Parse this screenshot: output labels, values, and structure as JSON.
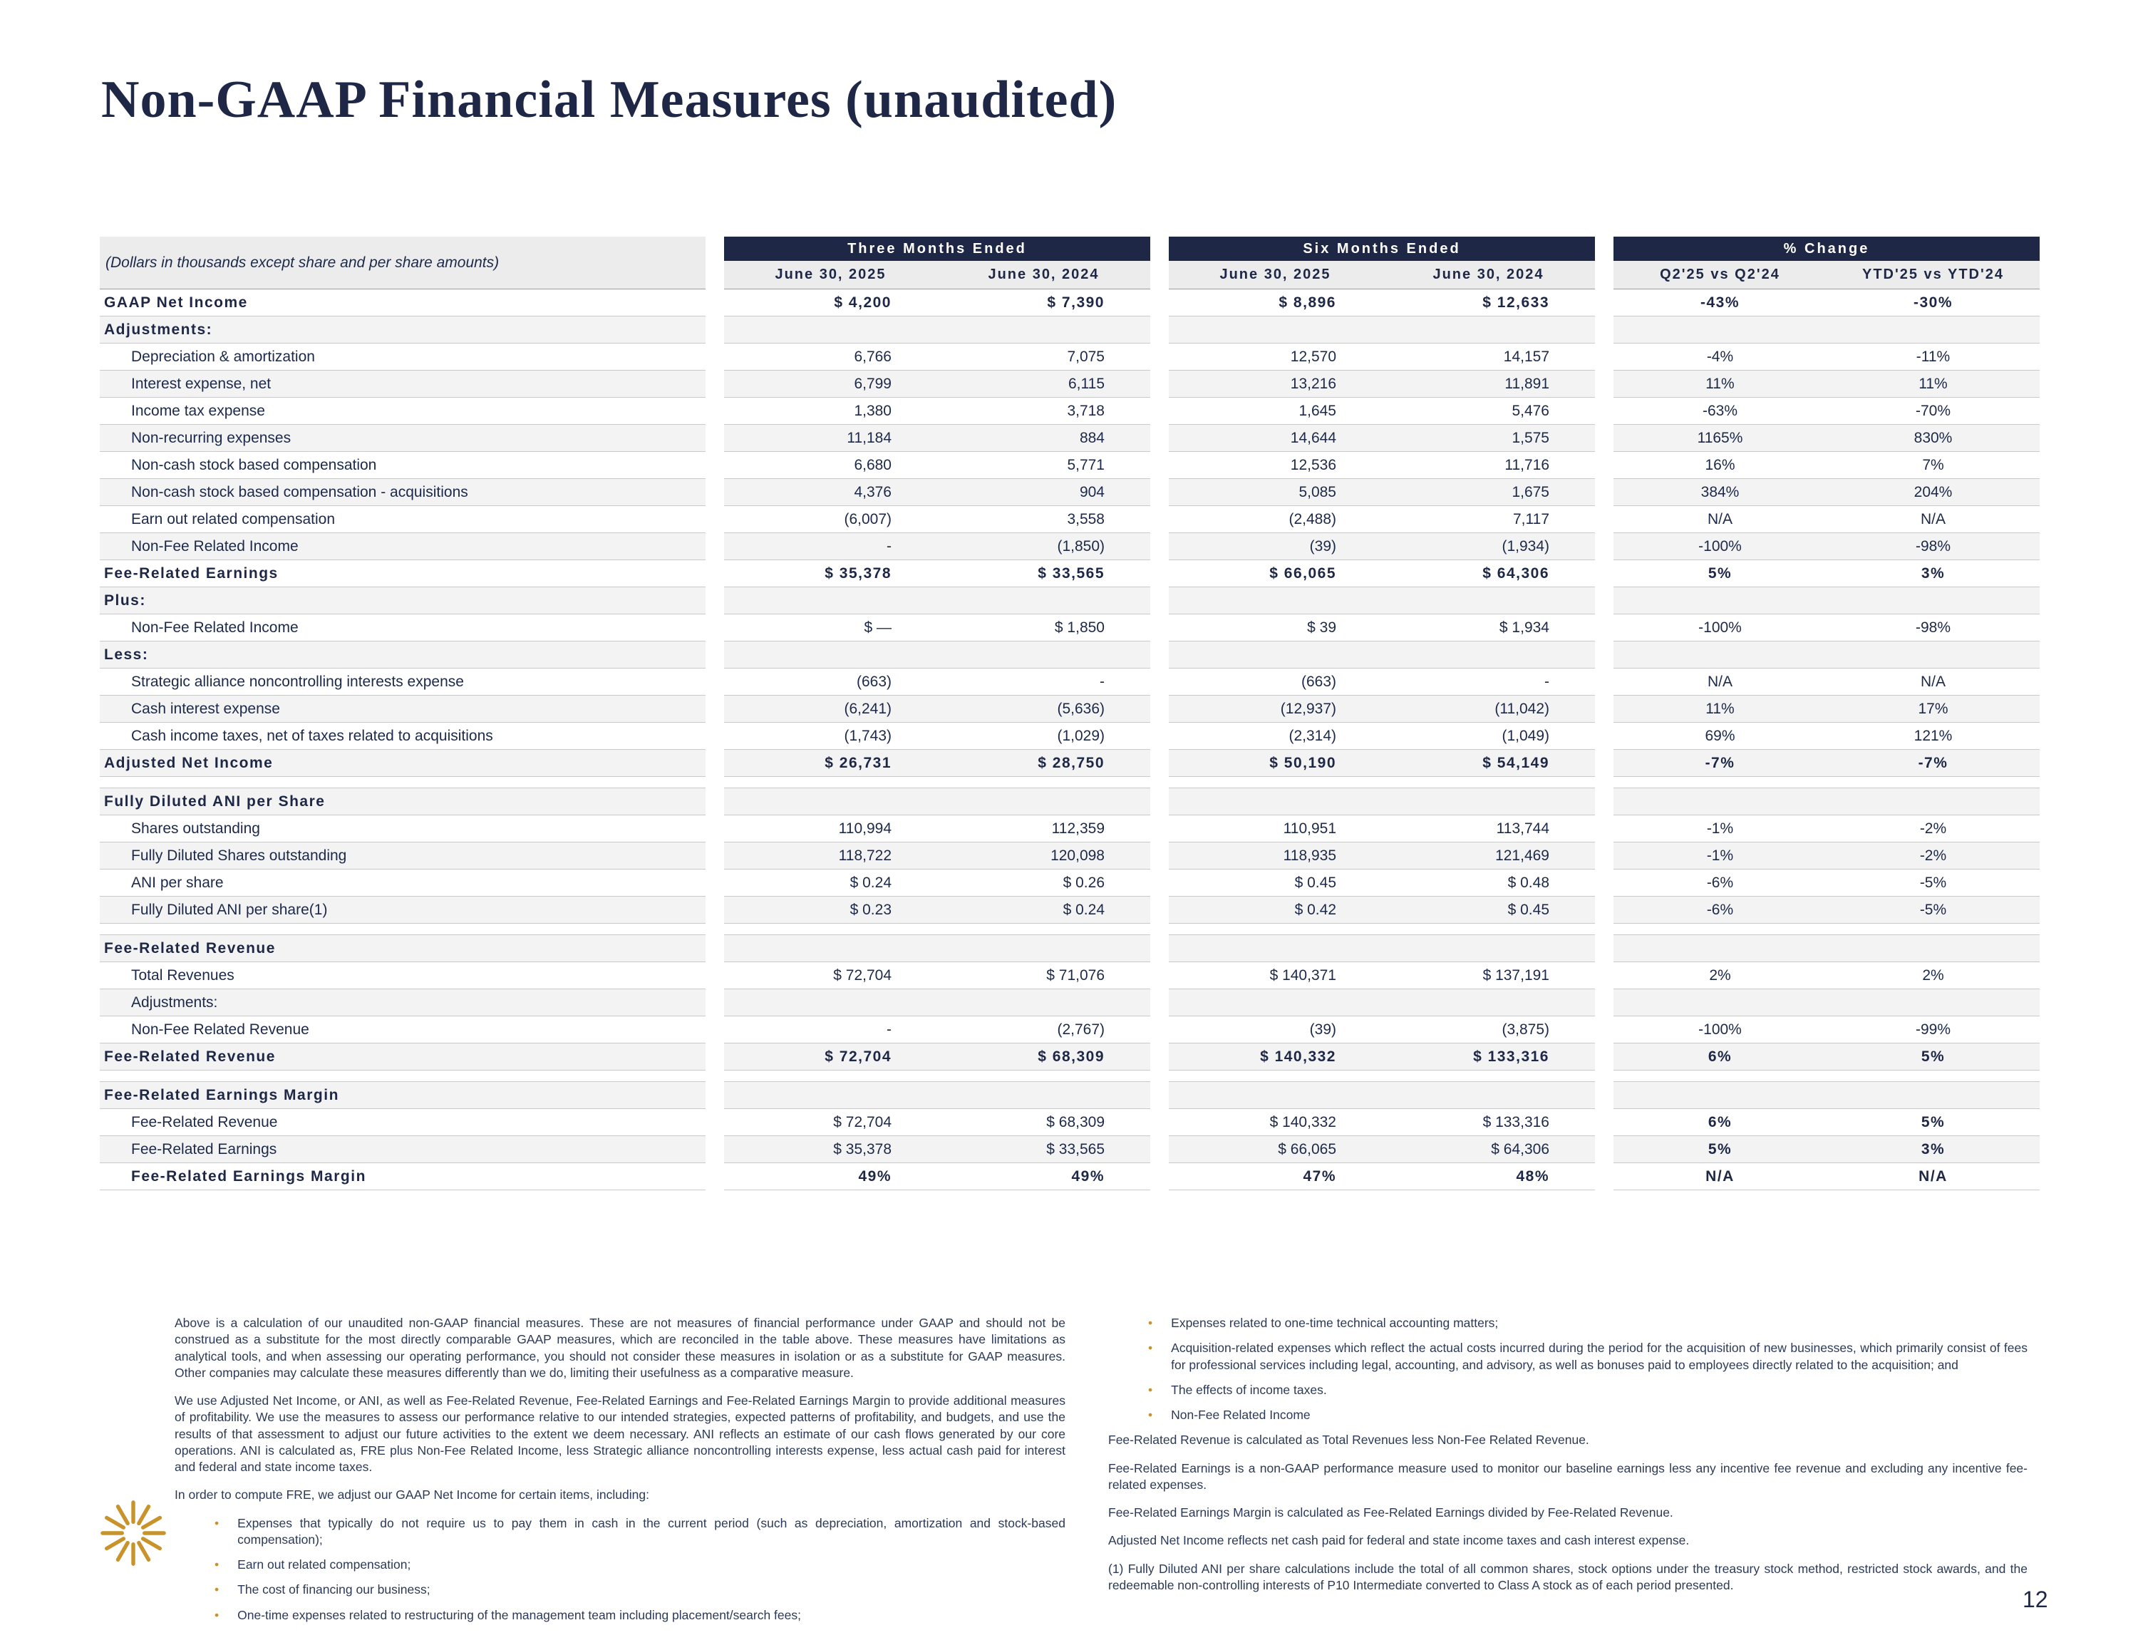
{
  "page": {
    "title": "Non-GAAP Financial Measures (unaudited)",
    "page_number": "12"
  },
  "colors": {
    "navy": "#1e2746",
    "gold": "#c8932b",
    "shade": "#f3f3f3",
    "headbg": "#ececec",
    "line": "#c9c9c9"
  },
  "icons": {
    "logo": "starburst-icon",
    "bullet": "•"
  },
  "table": {
    "caption": "(Dollars in thousands except share and per share amounts)",
    "col_groups": [
      {
        "label": "Three Months Ended",
        "cols": [
          "June 30, 2025",
          "June 30, 2024"
        ]
      },
      {
        "label": "Six Months Ended",
        "cols": [
          "June 30, 2025",
          "June 30, 2024"
        ]
      },
      {
        "label": "% Change",
        "cols": [
          "Q2'25 vs Q2'24",
          "YTD'25 vs YTD'24"
        ]
      }
    ],
    "rows": [
      {
        "type": "data",
        "label": "GAAP Net Income",
        "bold": true,
        "indent": false,
        "shaded": false,
        "values": [
          "$ 4,200",
          "$ 7,390",
          "$ 8,896",
          "$ 12,633",
          "-43%",
          "-30%"
        ]
      },
      {
        "type": "data",
        "label": "Adjustments:",
        "bold": true,
        "indent": false,
        "shaded": true,
        "values": [
          "",
          "",
          "",
          "",
          "",
          ""
        ]
      },
      {
        "type": "data",
        "label": "Depreciation & amortization",
        "bold": false,
        "indent": true,
        "shaded": false,
        "values": [
          "6,766",
          "7,075",
          "12,570",
          "14,157",
          "-4%",
          "-11%"
        ]
      },
      {
        "type": "data",
        "label": "Interest expense, net",
        "bold": false,
        "indent": true,
        "shaded": true,
        "values": [
          "6,799",
          "6,115",
          "13,216",
          "11,891",
          "11%",
          "11%"
        ]
      },
      {
        "type": "data",
        "label": "Income tax expense",
        "bold": false,
        "indent": true,
        "shaded": false,
        "values": [
          "1,380",
          "3,718",
          "1,645",
          "5,476",
          "-63%",
          "-70%"
        ]
      },
      {
        "type": "data",
        "label": "Non-recurring expenses",
        "bold": false,
        "indent": true,
        "shaded": true,
        "values": [
          "11,184",
          "884",
          "14,644",
          "1,575",
          "1165%",
          "830%"
        ]
      },
      {
        "type": "data",
        "label": "Non-cash stock based compensation",
        "bold": false,
        "indent": true,
        "shaded": false,
        "values": [
          "6,680",
          "5,771",
          "12,536",
          "11,716",
          "16%",
          "7%"
        ]
      },
      {
        "type": "data",
        "label": "Non-cash stock based compensation - acquisitions",
        "bold": false,
        "indent": true,
        "shaded": true,
        "values": [
          "4,376",
          "904",
          "5,085",
          "1,675",
          "384%",
          "204%"
        ]
      },
      {
        "type": "data",
        "label": "Earn out related compensation",
        "bold": false,
        "indent": true,
        "shaded": false,
        "values": [
          "(6,007)",
          "3,558",
          "(2,488)",
          "7,117",
          "N/A",
          "N/A"
        ]
      },
      {
        "type": "data",
        "label": "Non-Fee Related Income",
        "bold": false,
        "indent": true,
        "shaded": true,
        "values": [
          "-",
          "(1,850)",
          "(39)",
          "(1,934)",
          "-100%",
          "-98%"
        ]
      },
      {
        "type": "data",
        "label": "Fee-Related Earnings",
        "bold": true,
        "indent": false,
        "shaded": false,
        "values": [
          "$ 35,378",
          "$ 33,565",
          "$ 66,065",
          "$ 64,306",
          "5%",
          "3%"
        ]
      },
      {
        "type": "data",
        "label": "Plus:",
        "bold": true,
        "indent": false,
        "shaded": true,
        "values": [
          "",
          "",
          "",
          "",
          "",
          ""
        ]
      },
      {
        "type": "data",
        "label": "Non-Fee Related Income",
        "bold": false,
        "indent": true,
        "shaded": false,
        "values": [
          "$ —",
          "$ 1,850",
          "$ 39",
          "$ 1,934",
          "-100%",
          "-98%"
        ]
      },
      {
        "type": "data",
        "label": "Less:",
        "bold": true,
        "indent": false,
        "shaded": true,
        "values": [
          "",
          "",
          "",
          "",
          "",
          ""
        ]
      },
      {
        "type": "data",
        "label": "Strategic alliance noncontrolling interests expense",
        "bold": false,
        "indent": true,
        "shaded": false,
        "values": [
          "(663)",
          "-",
          "(663)",
          "-",
          "N/A",
          "N/A"
        ]
      },
      {
        "type": "data",
        "label": "Cash interest expense",
        "bold": false,
        "indent": true,
        "shaded": true,
        "values": [
          "(6,241)",
          "(5,636)",
          "(12,937)",
          "(11,042)",
          "11%",
          "17%"
        ]
      },
      {
        "type": "data",
        "label": "Cash income taxes, net of taxes related to acquisitions",
        "bold": false,
        "indent": true,
        "shaded": false,
        "values": [
          "(1,743)",
          "(1,029)",
          "(2,314)",
          "(1,049)",
          "69%",
          "121%"
        ]
      },
      {
        "type": "data",
        "label": "Adjusted Net Income",
        "bold": true,
        "indent": false,
        "shaded": true,
        "values": [
          "$ 26,731",
          "$ 28,750",
          "$ 50,190",
          "$ 54,149",
          "-7%",
          "-7%"
        ]
      },
      {
        "type": "spacer"
      },
      {
        "type": "data",
        "label": "Fully Diluted ANI per Share",
        "bold": true,
        "indent": false,
        "shaded": true,
        "values": [
          "",
          "",
          "",
          "",
          "",
          ""
        ]
      },
      {
        "type": "data",
        "label": "Shares outstanding",
        "bold": false,
        "indent": true,
        "shaded": false,
        "values": [
          "110,994",
          "112,359",
          "110,951",
          "113,744",
          "-1%",
          "-2%"
        ]
      },
      {
        "type": "data",
        "label": "Fully Diluted Shares outstanding",
        "bold": false,
        "indent": true,
        "shaded": true,
        "values": [
          "118,722",
          "120,098",
          "118,935",
          "121,469",
          "-1%",
          "-2%"
        ]
      },
      {
        "type": "data",
        "label": "ANI per share",
        "bold": false,
        "indent": true,
        "shaded": false,
        "values": [
          "$ 0.24",
          "$ 0.26",
          "$ 0.45",
          "$ 0.48",
          "-6%",
          "-5%"
        ]
      },
      {
        "type": "data",
        "label": "Fully Diluted ANI per share(1)",
        "bold": false,
        "indent": true,
        "shaded": true,
        "values": [
          "$ 0.23",
          "$ 0.24",
          "$ 0.42",
          "$ 0.45",
          "-6%",
          "-5%"
        ]
      },
      {
        "type": "spacer"
      },
      {
        "type": "data",
        "label": "Fee-Related Revenue",
        "bold": true,
        "indent": false,
        "shaded": true,
        "values": [
          "",
          "",
          "",
          "",
          "",
          ""
        ]
      },
      {
        "type": "data",
        "label": "Total Revenues",
        "bold": false,
        "indent": true,
        "shaded": false,
        "values": [
          "$ 72,704",
          "$ 71,076",
          "$ 140,371",
          "$ 137,191",
          "2%",
          "2%"
        ]
      },
      {
        "type": "data",
        "label": "Adjustments:",
        "bold": false,
        "indent": true,
        "shaded": true,
        "values": [
          "",
          "",
          "",
          "",
          "",
          ""
        ]
      },
      {
        "type": "data",
        "label": "Non-Fee Related Revenue",
        "bold": false,
        "indent": true,
        "shaded": false,
        "values": [
          "-",
          "(2,767)",
          "(39)",
          "(3,875)",
          "-100%",
          "-99%"
        ]
      },
      {
        "type": "data",
        "label": "Fee-Related Revenue",
        "bold": true,
        "indent": false,
        "shaded": true,
        "values": [
          "$ 72,704",
          "$ 68,309",
          "$ 140,332",
          "$ 133,316",
          "6%",
          "5%"
        ]
      },
      {
        "type": "spacer"
      },
      {
        "type": "data",
        "label": "Fee-Related Earnings Margin",
        "bold": true,
        "indent": false,
        "shaded": true,
        "values": [
          "",
          "",
          "",
          "",
          "",
          ""
        ]
      },
      {
        "type": "data",
        "label": "Fee-Related Revenue",
        "bold": false,
        "bold_pct": true,
        "indent": true,
        "shaded": false,
        "values": [
          "$ 72,704",
          "$ 68,309",
          "$ 140,332",
          "$ 133,316",
          "6%",
          "5%"
        ]
      },
      {
        "type": "data",
        "label": "Fee-Related Earnings",
        "bold": false,
        "bold_pct": true,
        "indent": true,
        "shaded": true,
        "values": [
          "$ 35,378",
          "$ 33,565",
          "$ 66,065",
          "$ 64,306",
          "5%",
          "3%"
        ]
      },
      {
        "type": "data",
        "label": "Fee-Related Earnings Margin",
        "bold": true,
        "indent": true,
        "shaded": false,
        "values": [
          "49%",
          "49%",
          "47%",
          "48%",
          "N/A",
          "N/A"
        ]
      }
    ]
  },
  "footnotes": {
    "left": [
      {
        "type": "p",
        "text": "Above is a calculation of our unaudited non-GAAP financial measures. These are not measures of financial performance under GAAP and should not be construed as a substitute for the most directly comparable GAAP measures, which are reconciled in the table above. These measures have limitations as analytical tools, and when assessing our operating performance, you should not consider these measures in isolation or as a substitute for GAAP measures. Other companies may calculate these measures differently than we do, limiting their usefulness as a comparative measure."
      },
      {
        "type": "p",
        "text": "We use Adjusted Net Income, or ANI, as well as Fee-Related Revenue, Fee-Related Earnings and Fee-Related Earnings Margin to provide additional measures of profitability. We use the measures to assess our performance relative to our intended strategies, expected patterns of profitability, and budgets, and use the results of that assessment to adjust our future activities to the extent we deem necessary. ANI reflects an estimate of our cash flows generated by our core operations. ANI is calculated as, FRE plus Non-Fee Related Income, less Strategic alliance noncontrolling interests expense, less actual cash paid for interest and federal and state income taxes."
      },
      {
        "type": "p",
        "text": "In order to compute FRE, we adjust our GAAP Net Income for certain items, including:"
      },
      {
        "type": "bullet",
        "text": "Expenses that typically do not require us to pay them in cash in the current period (such as depreciation, amortization and stock-based compensation);"
      },
      {
        "type": "bullet",
        "text": "Earn out related compensation;"
      },
      {
        "type": "bullet",
        "text": "The cost of financing our business;"
      },
      {
        "type": "bullet",
        "text": "One-time expenses related to restructuring of the management team including placement/search fees;"
      }
    ],
    "right": [
      {
        "type": "bullet",
        "text": "Expenses related to one-time technical accounting matters;"
      },
      {
        "type": "bullet",
        "text": "Acquisition-related expenses which reflect the actual costs incurred during the period for the acquisition of new businesses, which primarily consist of fees for professional services including legal, accounting, and advisory, as well as bonuses paid to employees directly related to the acquisition; and"
      },
      {
        "type": "bullet",
        "text": "The effects of income taxes."
      },
      {
        "type": "bullet",
        "text": "Non-Fee Related Income"
      },
      {
        "type": "p",
        "text": "Fee-Related Revenue is calculated as Total Revenues less Non-Fee Related Revenue."
      },
      {
        "type": "p",
        "text": "Fee-Related Earnings is a non-GAAP performance measure used to monitor our baseline earnings less any incentive fee revenue and excluding any incentive fee-related expenses."
      },
      {
        "type": "p",
        "text": "Fee-Related Earnings Margin is calculated as Fee-Related Earnings divided by Fee-Related Revenue."
      },
      {
        "type": "p",
        "text": "Adjusted Net Income reflects net cash paid for federal and state income taxes and cash interest expense."
      },
      {
        "type": "p",
        "text": "(1) Fully Diluted ANI per share calculations include the total of all common shares, stock options under the treasury stock method, restricted stock awards, and the redeemable non-controlling interests of P10 Intermediate converted to Class A stock as of each period presented."
      }
    ]
  }
}
